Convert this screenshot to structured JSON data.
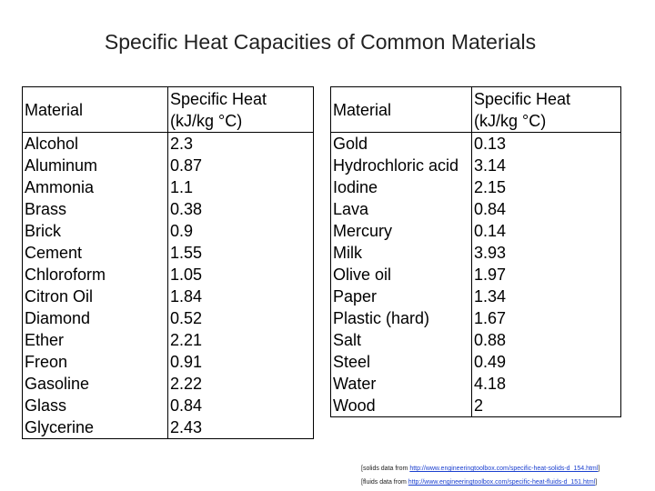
{
  "title": "Specific Heat Capacities of Common Materials",
  "tables": [
    {
      "header": [
        "Material",
        "Specific Heat (kJ/kg °C)"
      ],
      "rows": [
        [
          "Alcohol",
          "2.3"
        ],
        [
          "Aluminum",
          "0.87"
        ],
        [
          "Ammonia",
          "1.1"
        ],
        [
          "Brass",
          "0.38"
        ],
        [
          "Brick",
          "0.9"
        ],
        [
          "Cement",
          "1.55"
        ],
        [
          "Chloroform",
          "1.05"
        ],
        [
          "Citron Oil",
          "1.84"
        ],
        [
          "Diamond",
          "0.52"
        ],
        [
          "Ether",
          "2.21"
        ],
        [
          "Freon",
          "0.91"
        ],
        [
          "Gasoline",
          "2.22"
        ],
        [
          "Glass",
          "0.84"
        ],
        [
          "Glycerine",
          "2.43"
        ]
      ]
    },
    {
      "header": [
        "Material",
        "Specific Heat (kJ/kg °C)"
      ],
      "rows": [
        [
          "Gold",
          "0.13"
        ],
        [
          "Hydrochloric acid",
          "3.14"
        ],
        [
          "Iodine",
          "2.15"
        ],
        [
          "Lava",
          "0.84"
        ],
        [
          "Mercury",
          "0.14"
        ],
        [
          "Milk",
          "3.93"
        ],
        [
          "Olive oil",
          "1.97"
        ],
        [
          "Paper",
          "1.34"
        ],
        [
          "Plastic (hard)",
          "1.67"
        ],
        [
          "Salt",
          "0.88"
        ],
        [
          "Steel",
          "0.49"
        ],
        [
          "Water",
          "4.18"
        ],
        [
          "Wood",
          "2"
        ]
      ]
    }
  ],
  "footnotes": [
    {
      "prefix": "[solids data from",
      "link": "http://www.engineeringtoolbox.com/specific-heat-solids-d_154.html",
      "suffix": "]"
    },
    {
      "prefix": "[fluids data from",
      "link": "http://www.engineeringtoolbox.com/specific-heat-fluids-d_151.html",
      "suffix": "]"
    }
  ]
}
